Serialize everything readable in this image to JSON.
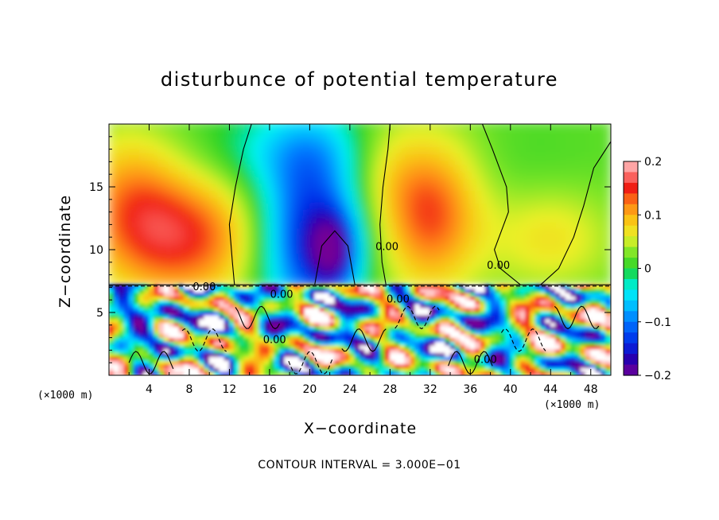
{
  "chart_data": {
    "type": "heatmap",
    "title": "disturbunce of potential temperature",
    "xlabel": "X−coordinate",
    "ylabel": "Z−coordinate",
    "x_unit": "(×1000 m)",
    "x_ticks": [
      4,
      8,
      12,
      16,
      20,
      24,
      28,
      32,
      36,
      40,
      44,
      48
    ],
    "y_ticks": [
      5,
      10,
      15
    ],
    "xlim": [
      0,
      50
    ],
    "ylim": [
      0,
      20
    ],
    "colorbar": {
      "min": -0.2,
      "max": 0.2,
      "tick_labels": [
        "0.2",
        "0.1",
        "0",
        "−0.1",
        "−0.2"
      ],
      "tick_values": [
        0.2,
        0.1,
        0,
        -0.1,
        -0.2
      ]
    },
    "contour_labels": [
      {
        "text": "0.00",
        "x": 27.7,
        "z": 10.2
      },
      {
        "text": "0.00",
        "x": 38.8,
        "z": 8.7
      },
      {
        "text": "0.00",
        "x": 9.5,
        "z": 7.0
      },
      {
        "text": "0.00",
        "x": 17.2,
        "z": 6.4
      },
      {
        "text": "0.00",
        "x": 28.8,
        "z": 6.0
      },
      {
        "text": "0.00",
        "x": 16.5,
        "z": 2.8
      },
      {
        "text": "0.00",
        "x": 37.5,
        "z": 1.2
      }
    ],
    "footer": "CONTOUR INTERVAL = 3.000E−01"
  }
}
